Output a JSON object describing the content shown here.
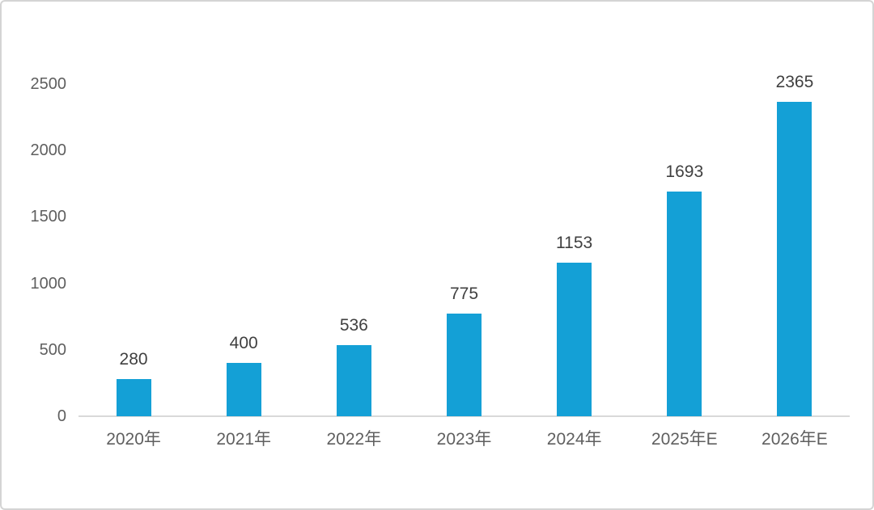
{
  "chart_data": {
    "type": "bar",
    "title": "",
    "xlabel": "",
    "ylabel": "",
    "categories": [
      "2020年",
      "2021年",
      "2022年",
      "2023年",
      "2024年",
      "2025年E",
      "2026年E"
    ],
    "values": [
      280,
      400,
      536,
      775,
      1153,
      1693,
      2365
    ],
    "data_labels_shown": true,
    "yticks": [
      0,
      500,
      1000,
      1500,
      2000,
      2500
    ],
    "ylim": [
      0,
      2500
    ],
    "grid": false,
    "legend": false,
    "colors": {
      "bar_fill": "#14a0d6",
      "data_label_text": "#404040",
      "axis_tick_text": "#5f5f5f",
      "axis_line": "#d9d9d9",
      "frame_border": "#d4d4d4",
      "background": "#ffffff"
    }
  }
}
